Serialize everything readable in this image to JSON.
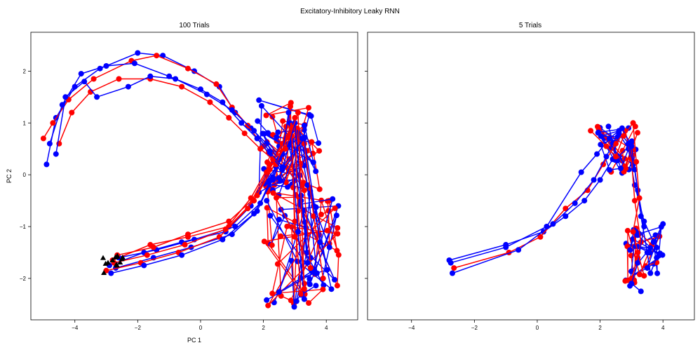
{
  "figure": {
    "suptitle": "Excitatory-Inhibitory Leaky RNN"
  },
  "chart_data": [
    {
      "type": "scatter",
      "title": "100 Trials",
      "xlabel": "PC 1",
      "ylabel": "PC 2",
      "xlim": [
        -5.4,
        5.0
      ],
      "ylim": [
        -2.8,
        2.75
      ],
      "xticks": [
        -4,
        -2,
        0,
        2,
        4
      ],
      "yticks": [
        -2,
        -1,
        0,
        1,
        2
      ],
      "grid": false,
      "legend": "none",
      "colors": {
        "red": "#ff0000",
        "blue": "#0000ff",
        "start": "#000000"
      },
      "start_cluster": {
        "x": -2.8,
        "y": -1.75
      },
      "trajectories": [
        {
          "color": "#0000ff",
          "x": [
            -2.9,
            -1.8,
            -0.6,
            0.8,
            1.6,
            2.1,
            2.5,
            2.9,
            3.2,
            3.5
          ],
          "y": [
            -1.75,
            -1.5,
            -1.3,
            -1.1,
            -0.6,
            0.0,
            0.55,
            0.85,
            -0.4,
            -1.6
          ]
        },
        {
          "color": "#ff0000",
          "x": [
            -2.8,
            -1.6,
            -0.4,
            0.9,
            1.7,
            2.2,
            2.6,
            3.0,
            3.1,
            3.3
          ],
          "y": [
            -1.65,
            -1.35,
            -1.2,
            -1.0,
            -0.5,
            0.1,
            0.6,
            0.9,
            -0.7,
            -2.1
          ]
        },
        {
          "color": "#0000ff",
          "x": [
            -2.7,
            -1.5,
            -0.3,
            1.0,
            1.8,
            2.3,
            2.7,
            3.1,
            3.4,
            3.7
          ],
          "y": [
            -1.8,
            -1.6,
            -1.4,
            -1.15,
            -0.7,
            -0.05,
            0.5,
            0.8,
            -0.2,
            -1.9
          ]
        },
        {
          "color": "#ff0000",
          "x": [
            -3.0,
            -1.9,
            -0.7,
            0.6,
            1.5,
            2.1,
            2.6,
            2.9,
            3.0,
            3.2
          ],
          "y": [
            -1.85,
            -1.7,
            -1.5,
            -1.2,
            -0.65,
            0.05,
            0.45,
            0.95,
            -0.9,
            -2.3
          ]
        },
        {
          "color": "#0000ff",
          "x": [
            -2.6,
            -1.4,
            -0.2,
            1.1,
            1.9,
            2.4,
            2.8,
            3.2,
            3.6,
            4.1
          ],
          "y": [
            -1.6,
            -1.45,
            -1.25,
            -1.0,
            -0.55,
            0.15,
            0.6,
            0.7,
            -0.6,
            -1.4
          ]
        },
        {
          "color": "#ff0000",
          "x": [
            -2.75,
            -1.7,
            -0.5,
            0.8,
            1.6,
            2.2,
            2.7,
            3.0,
            3.3,
            3.5
          ],
          "y": [
            -1.7,
            -1.55,
            -1.35,
            -1.05,
            -0.45,
            0.2,
            0.7,
            1.1,
            -0.3,
            -1.8
          ]
        },
        {
          "color": "#0000ff",
          "x": [
            -2.85,
            -1.8,
            -0.6,
            0.7,
            1.7,
            2.3,
            2.6,
            2.8,
            3.1,
            3.3
          ],
          "y": [
            -1.9,
            -1.75,
            -1.55,
            -1.25,
            -0.75,
            -0.1,
            0.4,
            1.2,
            -1.1,
            -2.4
          ]
        },
        {
          "color": "#ff0000",
          "x": [
            -2.65,
            -1.5,
            -0.4,
            0.9,
            1.8,
            2.4,
            2.9,
            3.3,
            3.6,
            3.9
          ],
          "y": [
            -1.55,
            -1.4,
            -1.15,
            -0.9,
            -0.4,
            0.25,
            0.75,
            0.6,
            -0.8,
            -2.0
          ]
        },
        {
          "color": "#0000ff",
          "x": [
            -4.9,
            -4.6,
            -4.0,
            -3.2,
            -2.0,
            -1.2,
            -0.2,
            0.6,
            1.1,
            1.6,
            2.1,
            2.5,
            2.8,
            3.2
          ],
          "y": [
            0.2,
            1.1,
            1.7,
            2.05,
            2.35,
            2.3,
            2.0,
            1.7,
            1.2,
            0.9,
            0.6,
            0.3,
            0.6,
            -0.5
          ]
        },
        {
          "color": "#ff0000",
          "x": [
            -5.0,
            -4.7,
            -4.2,
            -3.4,
            -2.2,
            -1.4,
            -0.4,
            0.5,
            1.0,
            1.5,
            2.0,
            2.4,
            2.9,
            3.0
          ],
          "y": [
            0.7,
            1.0,
            1.45,
            1.85,
            2.2,
            2.3,
            2.05,
            1.75,
            1.3,
            0.95,
            0.55,
            0.2,
            0.9,
            -1.2
          ]
        },
        {
          "color": "#0000ff",
          "x": [
            -4.8,
            -4.4,
            -3.8,
            -3.0,
            -2.1,
            -1.0,
            0.0,
            0.7,
            1.3,
            1.8,
            2.2,
            2.6,
            3.0,
            3.4
          ],
          "y": [
            0.6,
            1.35,
            1.95,
            2.1,
            2.15,
            1.9,
            1.65,
            1.4,
            1.0,
            0.7,
            0.4,
            0.1,
            1.0,
            -1.7
          ]
        },
        {
          "color": "#ff0000",
          "x": [
            -4.5,
            -4.1,
            -3.5,
            -2.6,
            -1.6,
            -0.6,
            0.3,
            0.9,
            1.4,
            1.9,
            2.3,
            2.7,
            3.1,
            3.3
          ],
          "y": [
            0.6,
            1.2,
            1.6,
            1.85,
            1.85,
            1.7,
            1.4,
            1.1,
            0.8,
            0.5,
            0.3,
            0.5,
            1.2,
            -2.2
          ]
        },
        {
          "color": "#0000ff",
          "x": [
            -4.6,
            -4.3,
            -3.7,
            -3.3,
            -2.3,
            -1.6,
            -0.8,
            0.2,
            1.0,
            1.7,
            2.2,
            2.6,
            3.3,
            3.8
          ],
          "y": [
            0.4,
            1.5,
            1.8,
            1.5,
            1.7,
            1.9,
            1.85,
            1.55,
            1.25,
            0.85,
            0.45,
            0.15,
            0.7,
            -1.3
          ]
        }
      ],
      "cloud_upper": {
        "color_a": "#ff0000",
        "color_b": "#0000ff",
        "x_range": [
          1.8,
          3.8
        ],
        "y_range": [
          -0.4,
          1.45
        ]
      },
      "cloud_lower": {
        "color_a": "#ff0000",
        "color_b": "#0000ff",
        "x_range": [
          2.0,
          4.4
        ],
        "y_range": [
          -2.55,
          -0.3
        ]
      }
    },
    {
      "type": "scatter",
      "title": "5 Trials",
      "xlabel": "",
      "ylabel": "",
      "xlim": [
        -5.4,
        5.0
      ],
      "ylim": [
        -2.8,
        2.75
      ],
      "xticks": [
        -4,
        -2,
        0,
        2,
        4
      ],
      "yticks": [],
      "grid": false,
      "legend": "none",
      "colors": {
        "red": "#ff0000",
        "blue": "#0000ff"
      },
      "trajectories": [
        {
          "color": "#0000ff",
          "x": [
            -2.8,
            -1.0,
            0.2,
            0.9,
            1.5,
            2.0,
            2.4,
            2.6,
            2.9,
            3.1,
            3.4,
            3.7,
            4.0,
            3.5
          ],
          "y": [
            -1.65,
            -1.35,
            -1.1,
            -0.8,
            -0.5,
            -0.1,
            0.3,
            0.8,
            0.5,
            -0.2,
            -0.9,
            -1.3,
            -0.95,
            -1.8
          ]
        },
        {
          "color": "#ff0000",
          "x": [
            -2.65,
            -0.9,
            0.1,
            0.9,
            1.6,
            2.1,
            2.5,
            2.8,
            3.0,
            3.1,
            3.3,
            3.2,
            3.0,
            2.8
          ],
          "y": [
            -1.8,
            -1.5,
            -1.2,
            -0.65,
            -0.3,
            0.2,
            0.6,
            0.85,
            0.3,
            -0.5,
            -1.3,
            -1.6,
            -2.0,
            -2.05
          ]
        },
        {
          "color": "#0000ff",
          "x": [
            -2.7,
            -0.6,
            0.5,
            1.2,
            1.8,
            2.2,
            2.6,
            2.9,
            3.1,
            3.3,
            3.5,
            3.6,
            3.8
          ],
          "y": [
            -1.9,
            -1.45,
            -0.95,
            -0.55,
            -0.1,
            0.35,
            0.85,
            0.6,
            0.1,
            -0.8,
            -1.5,
            -1.9,
            -1.6
          ]
        },
        {
          "color": "#0000ff",
          "x": [
            -2.75,
            -1.0,
            0.3,
            1.4,
            1.9,
            2.3,
            2.7,
            3.0,
            3.2,
            3.4,
            3.2,
            3.0,
            3.3
          ],
          "y": [
            -1.7,
            -1.4,
            -1.0,
            0.05,
            0.4,
            0.7,
            0.9,
            0.55,
            -0.3,
            -1.0,
            -1.7,
            -2.1,
            -2.25
          ]
        },
        {
          "color": "#ff0000",
          "x": [
            1.7,
            2.2,
            2.5,
            2.75,
            3.05,
            3.15,
            3.25,
            3.05,
            3.2,
            3.4
          ],
          "y": [
            0.85,
            0.55,
            0.35,
            0.75,
            1.0,
            0.25,
            -0.45,
            -1.1,
            -1.5,
            -1.95
          ]
        }
      ],
      "cloud_upper": {
        "color_a": "#0000ff",
        "color_b": "#ff0000",
        "x_range": [
          1.9,
          3.2
        ],
        "y_range": [
          0.0,
          0.95
        ]
      },
      "cloud_lower": {
        "color_a": "#0000ff",
        "color_b": "#ff0000",
        "x_range": [
          2.8,
          4.0
        ],
        "y_range": [
          -2.15,
          -0.95
        ]
      }
    }
  ]
}
